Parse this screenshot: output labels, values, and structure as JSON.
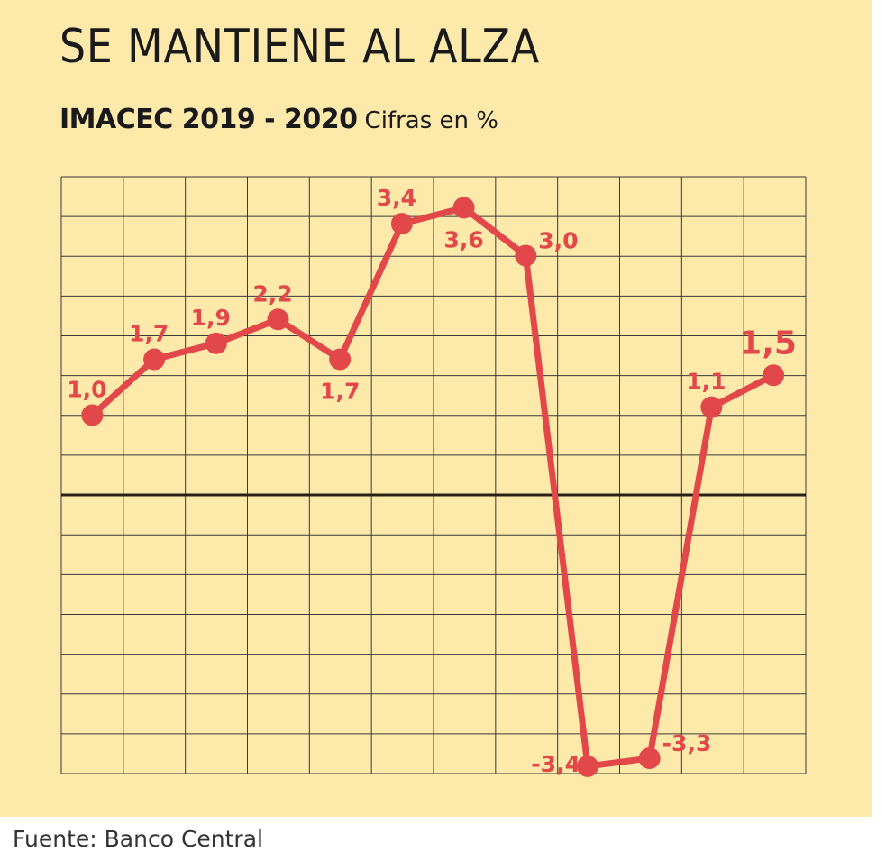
{
  "header": {
    "title": "SE MANTIENE AL ALZA",
    "subtitle_bold": "IMACEC 2019 - 2020",
    "subtitle_light": "Cifras en %"
  },
  "footer": {
    "source": "Fuente: Banco Central"
  },
  "colors": {
    "background": "#fde9a9",
    "series": "#e2474a",
    "grid": "#3a3a3a",
    "zero_line": "#2a2218"
  },
  "chart_data": {
    "type": "line",
    "title": "IMACEC 2019 - 2020",
    "xlabel": "",
    "ylabel": "Cifras en %",
    "grid": true,
    "ylim": [
      -3.5,
      4.2
    ],
    "series": [
      {
        "name": "IMACEC",
        "values": [
          1.0,
          1.7,
          1.9,
          2.2,
          1.7,
          3.4,
          3.6,
          3.0,
          -3.4,
          -3.3,
          1.1,
          1.5
        ],
        "labels": [
          "1,0",
          "1,7",
          "1,9",
          "2,2",
          "1,7",
          "3,4",
          "3,6",
          "3,0",
          "-3,4",
          "-3,3",
          "1,1",
          "1,5"
        ],
        "label_positions": [
          "above",
          "above",
          "above",
          "above",
          "below",
          "above",
          "below",
          "right",
          "left",
          "right",
          "above",
          "above"
        ],
        "highlight_last": true
      }
    ]
  }
}
